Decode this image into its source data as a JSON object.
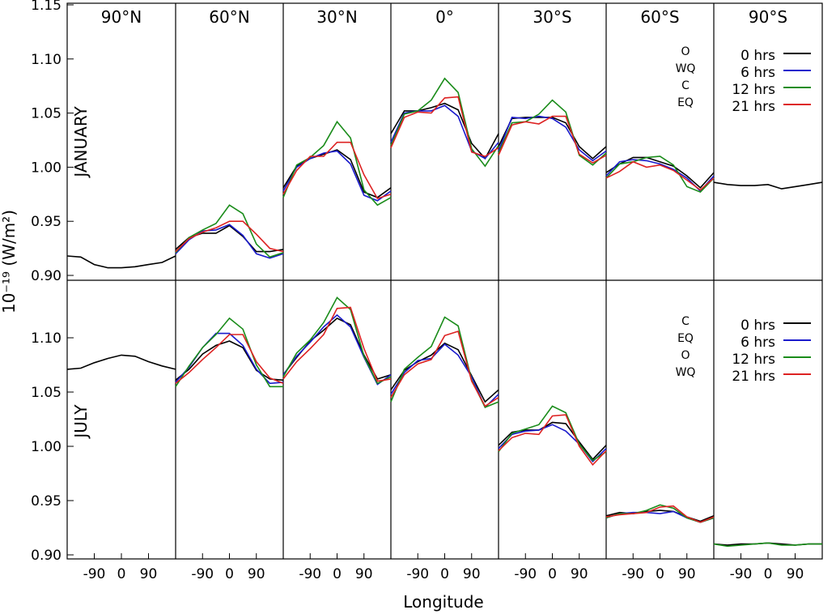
{
  "chart_data": {
    "type": "line",
    "xlabel": "Longitude",
    "ylabel": "10⁻¹⁹ (W/m²)",
    "latitudes": [
      "90°N",
      "60°N",
      "30°N",
      "0°",
      "30°S",
      "60°S",
      "90°S"
    ],
    "x_tick_labels": [
      "-90",
      "0",
      "90"
    ],
    "x": [
      -180,
      -135,
      -90,
      -45,
      0,
      45,
      90,
      135,
      180
    ],
    "panels": [
      {
        "season": "JANUARY",
        "yticks": [
          "1.15",
          "1.10",
          "1.05",
          "1.00",
          "0.95",
          "0.90"
        ],
        "ylim": [
          0.9,
          1.15
        ],
        "legend": {
          "codes": [
            "O",
            "WQ",
            "C",
            "EQ"
          ],
          "entries": [
            {
              "label": "0 hrs",
              "color": "#000000"
            },
            {
              "label": "6 hrs",
              "color": "#1a1acc"
            },
            {
              "label": "12 hrs",
              "color": "#1a8c1a"
            },
            {
              "label": "21 hrs",
              "color": "#dd2222"
            }
          ]
        },
        "series": [
          {
            "color": "#000000",
            "values": [
              [
                0.918,
                0.917,
                0.91,
                0.907,
                0.907,
                0.908,
                0.91,
                0.912,
                0.918
              ],
              [
                0.924,
                0.935,
                0.939,
                0.939,
                0.946,
                0.936,
                0.922,
                0.922,
                0.924
              ],
              [
                0.981,
                1.001,
                1.008,
                1.012,
                1.016,
                1.007,
                0.977,
                0.972,
                0.981
              ],
              [
                1.031,
                1.052,
                1.052,
                1.055,
                1.059,
                1.053,
                1.022,
                1.008,
                1.031
              ],
              [
                1.019,
                1.045,
                1.046,
                1.046,
                1.046,
                1.041,
                1.019,
                1.008,
                1.019
              ],
              [
                0.995,
                1.003,
                1.009,
                1.009,
                1.005,
                1.001,
                0.992,
                0.981,
                0.995
              ],
              [
                0.986,
                0.984,
                0.983,
                0.983,
                0.984,
                0.98,
                0.982,
                0.984,
                0.986
              ]
            ]
          },
          {
            "color": "#1a1acc",
            "values": [
              [],
              [
                0.92,
                0.933,
                0.941,
                0.942,
                0.947,
                0.937,
                0.92,
                0.916,
                0.92
              ],
              [
                0.978,
                1.0,
                1.008,
                1.013,
                1.015,
                1.003,
                0.974,
                0.969,
                0.978
              ],
              [
                1.023,
                1.05,
                1.052,
                1.052,
                1.057,
                1.047,
                1.015,
                1.008,
                1.023
              ],
              [
                1.015,
                1.046,
                1.045,
                1.047,
                1.045,
                1.037,
                1.016,
                1.006,
                1.015
              ],
              [
                0.992,
                1.005,
                1.007,
                1.006,
                1.003,
                0.998,
                0.99,
                0.978,
                0.992
              ],
              []
            ]
          },
          {
            "color": "#1a8c1a",
            "values": [
              [],
              [
                0.921,
                0.935,
                0.942,
                0.948,
                0.965,
                0.957,
                0.929,
                0.917,
                0.921
              ],
              [
                0.972,
                1.002,
                1.009,
                1.02,
                1.042,
                1.027,
                0.979,
                0.965,
                0.972
              ],
              [
                1.02,
                1.049,
                1.052,
                1.062,
                1.082,
                1.069,
                1.017,
                1.001,
                1.02
              ],
              [
                1.013,
                1.041,
                1.042,
                1.049,
                1.062,
                1.051,
                1.011,
                1.002,
                1.013
              ],
              [
                0.99,
                1.003,
                1.005,
                1.009,
                1.01,
                1.002,
                0.982,
                0.977,
                0.99
              ],
              []
            ]
          },
          {
            "color": "#dd2222",
            "values": [
              [],
              [
                0.922,
                0.934,
                0.94,
                0.944,
                0.95,
                0.95,
                0.938,
                0.925,
                0.922
              ],
              [
                0.975,
                0.997,
                1.01,
                1.01,
                1.023,
                1.023,
                0.993,
                0.971,
                0.975
              ],
              [
                1.018,
                1.046,
                1.051,
                1.05,
                1.064,
                1.065,
                1.014,
                1.01,
                1.018
              ],
              [
                1.011,
                1.039,
                1.042,
                1.04,
                1.047,
                1.047,
                1.012,
                1.004,
                1.011
              ],
              [
                0.99,
                0.996,
                1.005,
                1.0,
                1.002,
                0.997,
                0.988,
                0.979,
                0.99
              ],
              []
            ]
          }
        ]
      },
      {
        "season": "JULY",
        "yticks": [
          "1.10",
          "1.05",
          "1.00",
          "0.95",
          "0.90"
        ],
        "ylim": [
          0.9,
          1.15
        ],
        "legend": {
          "codes": [
            "C",
            "EQ",
            "O",
            "WQ"
          ],
          "entries": [
            {
              "label": "0 hrs",
              "color": "#000000"
            },
            {
              "label": "6 hrs",
              "color": "#1a1acc"
            },
            {
              "label": "12 hrs",
              "color": "#1a8c1a"
            },
            {
              "label": "21 hrs",
              "color": "#dd2222"
            }
          ]
        },
        "series": [
          {
            "color": "#000000",
            "values": [
              [
                1.071,
                1.072,
                1.077,
                1.081,
                1.084,
                1.083,
                1.078,
                1.074,
                1.071
              ],
              [
                1.061,
                1.071,
                1.085,
                1.093,
                1.097,
                1.091,
                1.07,
                1.062,
                1.061
              ],
              [
                1.066,
                1.082,
                1.097,
                1.107,
                1.118,
                1.112,
                1.084,
                1.062,
                1.066
              ],
              [
                1.052,
                1.07,
                1.078,
                1.084,
                1.095,
                1.089,
                1.065,
                1.041,
                1.052
              ],
              [
                1.001,
                1.013,
                1.015,
                1.015,
                1.022,
                1.021,
                1.004,
                0.988,
                1.001
              ],
              [
                0.936,
                0.939,
                0.938,
                0.94,
                0.941,
                0.94,
                0.935,
                0.931,
                0.936
              ],
              [
                0.91,
                0.909,
                0.91,
                0.91,
                0.911,
                0.91,
                0.909,
                0.91,
                0.91
              ]
            ]
          },
          {
            "color": "#1a1acc",
            "values": [
              [],
              [
                1.059,
                1.073,
                1.091,
                1.104,
                1.104,
                1.093,
                1.071,
                1.058,
                1.059
              ],
              [
                1.066,
                1.083,
                1.096,
                1.11,
                1.121,
                1.11,
                1.082,
                1.057,
                1.066
              ],
              [
                1.048,
                1.068,
                1.079,
                1.081,
                1.094,
                1.084,
                1.064,
                1.036,
                1.048
              ],
              [
                0.998,
                1.011,
                1.014,
                1.015,
                1.02,
                1.014,
                1.002,
                0.986,
                0.998
              ],
              [
                0.934,
                0.938,
                0.939,
                0.939,
                0.938,
                0.94,
                0.934,
                0.93,
                0.934
              ],
              []
            ]
          },
          {
            "color": "#1a8c1a",
            "values": [
              [],
              [
                1.055,
                1.074,
                1.091,
                1.103,
                1.118,
                1.108,
                1.075,
                1.055,
                1.055
              ],
              [
                1.064,
                1.086,
                1.098,
                1.114,
                1.137,
                1.126,
                1.083,
                1.058,
                1.064
              ],
              [
                1.041,
                1.071,
                1.082,
                1.092,
                1.119,
                1.111,
                1.061,
                1.036,
                1.041
              ],
              [
                0.995,
                1.012,
                1.016,
                1.02,
                1.037,
                1.031,
                1.002,
                0.987,
                0.995
              ],
              [
                0.934,
                0.938,
                0.938,
                0.941,
                0.946,
                0.943,
                0.934,
                0.93,
                0.934
              ],
              [
                0.91,
                0.908,
                0.909,
                0.91,
                0.911,
                0.909,
                0.909,
                0.91,
                0.91
              ]
            ]
          },
          {
            "color": "#dd2222",
            "values": [
              [],
              [
                1.058,
                1.068,
                1.08,
                1.091,
                1.103,
                1.103,
                1.078,
                1.063,
                1.058
              ],
              [
                1.062,
                1.078,
                1.09,
                1.103,
                1.127,
                1.128,
                1.09,
                1.06,
                1.062
              ],
              [
                1.045,
                1.066,
                1.076,
                1.08,
                1.102,
                1.106,
                1.06,
                1.037,
                1.045
              ],
              [
                0.996,
                1.008,
                1.012,
                1.011,
                1.028,
                1.029,
                1.0,
                0.983,
                0.996
              ],
              [
                0.935,
                0.937,
                0.938,
                0.939,
                0.944,
                0.945,
                0.935,
                0.93,
                0.935
              ],
              []
            ]
          }
        ]
      }
    ]
  }
}
